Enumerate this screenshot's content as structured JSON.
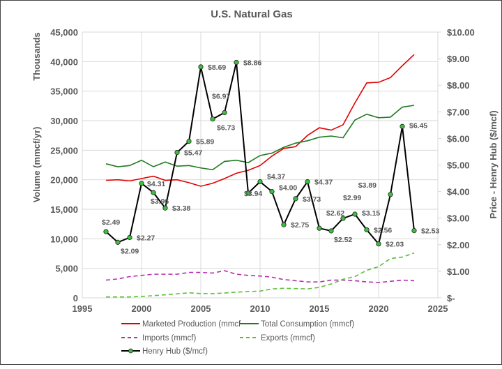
{
  "chart_data": {
    "type": "line",
    "title": "U.S. Natural Gas",
    "xlabel": "",
    "ylabel": "Volume (mmcf/yr)",
    "ylabel_units": "Thousands",
    "y2label": "Price - Henry Hub ($/mcf)",
    "xlim": [
      1995,
      2025
    ],
    "ylim": [
      0,
      45000
    ],
    "y2lim": [
      0,
      10
    ],
    "x_ticks": [
      "1995",
      "2000",
      "2005",
      "2010",
      "2015",
      "2020",
      "2025"
    ],
    "y_ticks": [
      "0",
      "5,000",
      "10,000",
      "15,000",
      "20,000",
      "25,000",
      "30,000",
      "35,000",
      "40,000",
      "45,000"
    ],
    "y2_ticks": [
      "$-",
      "$1.00",
      "$2.00",
      "$3.00",
      "$4.00",
      "$5.00",
      "$6.00",
      "$7.00",
      "$8.00",
      "$9.00",
      "$10.00"
    ],
    "grid": true,
    "legend_position": "bottom",
    "x": [
      1997,
      1998,
      1999,
      2000,
      2001,
      2002,
      2003,
      2004,
      2005,
      2006,
      2007,
      2008,
      2009,
      2010,
      2011,
      2012,
      2013,
      2014,
      2015,
      2016,
      2017,
      2018,
      2019,
      2020,
      2021,
      2022,
      2023
    ],
    "series": [
      {
        "name": "Marketed Production  (mmcf",
        "axis": "left",
        "color": "#e00000",
        "dash": "solid",
        "values": [
          19900,
          20000,
          19800,
          20200,
          20600,
          19900,
          20000,
          19500,
          18900,
          19400,
          20200,
          21100,
          21600,
          22400,
          24000,
          25300,
          25600,
          27500,
          28800,
          28400,
          29300,
          33000,
          36400,
          36500,
          37300,
          39300,
          41200
        ]
      },
      {
        "name": "Total Consumption  (mmcf)",
        "axis": "left",
        "color": "#217a21",
        "dash": "solid",
        "values": [
          22700,
          22200,
          22400,
          23300,
          22200,
          23000,
          22300,
          22400,
          22000,
          21700,
          23100,
          23300,
          22900,
          24100,
          24500,
          25500,
          26200,
          26600,
          27200,
          27400,
          27100,
          30100,
          31100,
          30500,
          30600,
          32300,
          32600
        ]
      },
      {
        "name": "Imports (mmcf)",
        "axis": "left",
        "color": "#b030b0",
        "dash": "dashed",
        "values": [
          3000,
          3200,
          3600,
          3800,
          4000,
          4000,
          4000,
          4300,
          4300,
          4200,
          4600,
          4000,
          3800,
          3700,
          3500,
          3100,
          2900,
          2700,
          2700,
          3000,
          3000,
          2900,
          2700,
          2600,
          2800,
          3000,
          2900
        ]
      },
      {
        "name": "Exports  (mmcf)",
        "axis": "left",
        "color": "#5cbf3a",
        "dash": "dashed",
        "values": [
          160,
          160,
          160,
          240,
          370,
          520,
          680,
          850,
          730,
          720,
          820,
          960,
          1070,
          1140,
          1510,
          1620,
          1570,
          1510,
          1780,
          2340,
          3150,
          3610,
          4660,
          5280,
          6650,
          6900,
          7600
        ]
      },
      {
        "name": "Henry Hub ($/mcf)",
        "axis": "right",
        "color": "#000000",
        "marker_color": "#3cc03c",
        "dash": "solid",
        "values": [
          2.49,
          2.09,
          2.27,
          4.31,
          3.96,
          3.38,
          5.47,
          5.89,
          8.69,
          6.73,
          6.97,
          8.86,
          3.94,
          4.37,
          4.0,
          2.75,
          3.73,
          4.37,
          2.62,
          2.52,
          2.99,
          3.15,
          2.56,
          2.03,
          3.89,
          6.45,
          2.53
        ],
        "data_labels": [
          "$2.49",
          "$2.09",
          "$2.27",
          "$4.31",
          "$3.96",
          "$3.38",
          "$5.47",
          "$5.89",
          "$8.69",
          "$6.73",
          "$6.97",
          "$8.86",
          "$3.94",
          "$4.37",
          "$4.00",
          "$2.75",
          "$3.73",
          "$4.37",
          "$2.62",
          "$2.52",
          "$2.99",
          "$3.15",
          "$2.56",
          "$2.03",
          "$3.89",
          "$6.45",
          "$2.53"
        ]
      }
    ]
  }
}
